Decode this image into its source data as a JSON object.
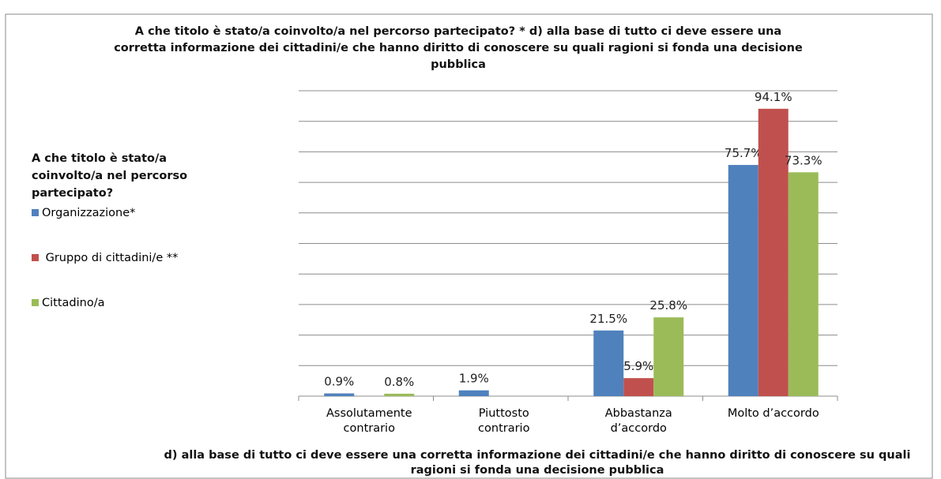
{
  "chart_data": {
    "type": "bar",
    "title": "A che titolo è stato/a coinvolto/a nel percorso partecipato? * d) alla base di tutto ci deve essere una corretta informazione dei cittadini/e che hanno diritto di conoscere su quali ragioni si fonda una decisione pubblica",
    "x_label": "d) alla base di tutto ci deve essere una corretta informazione dei cittadini/e che hanno diritto di conoscere su quali ragioni si fonda una decisione pubblica",
    "legend_title": "A che titolo è stato/a coinvolto/a nel percorso partecipato?",
    "legend": "left",
    "grid": true,
    "categories": [
      "Assolutamente\ncontrario",
      "Piuttosto\ncontrario",
      "Abbastanza\nd’accordo",
      "Molto d’accordo"
    ],
    "series": [
      {
        "name": "Organizzazione*",
        "color": "#4f81bd",
        "values": [
          0.9,
          1.9,
          21.5,
          75.7
        ],
        "value_labels": [
          "0.9%",
          "1.9%",
          "21.5%",
          "75.7%"
        ]
      },
      {
        "name": " Gruppo di cittadini/e **",
        "color": "#c0504d",
        "values": [
          null,
          null,
          5.9,
          94.1
        ],
        "value_labels": [
          null,
          null,
          "5.9%",
          "94.1%"
        ]
      },
      {
        "name": "Cittadino/a",
        "color": "#9bbb59",
        "values": [
          0.8,
          null,
          25.8,
          73.3
        ],
        "value_labels": [
          "0.8%",
          null,
          "25.8%",
          "73.3%"
        ]
      }
    ],
    "ylim": [
      0,
      100
    ],
    "yticks": [
      0,
      10,
      20,
      30,
      40,
      50,
      60,
      70,
      80,
      90,
      100
    ]
  }
}
